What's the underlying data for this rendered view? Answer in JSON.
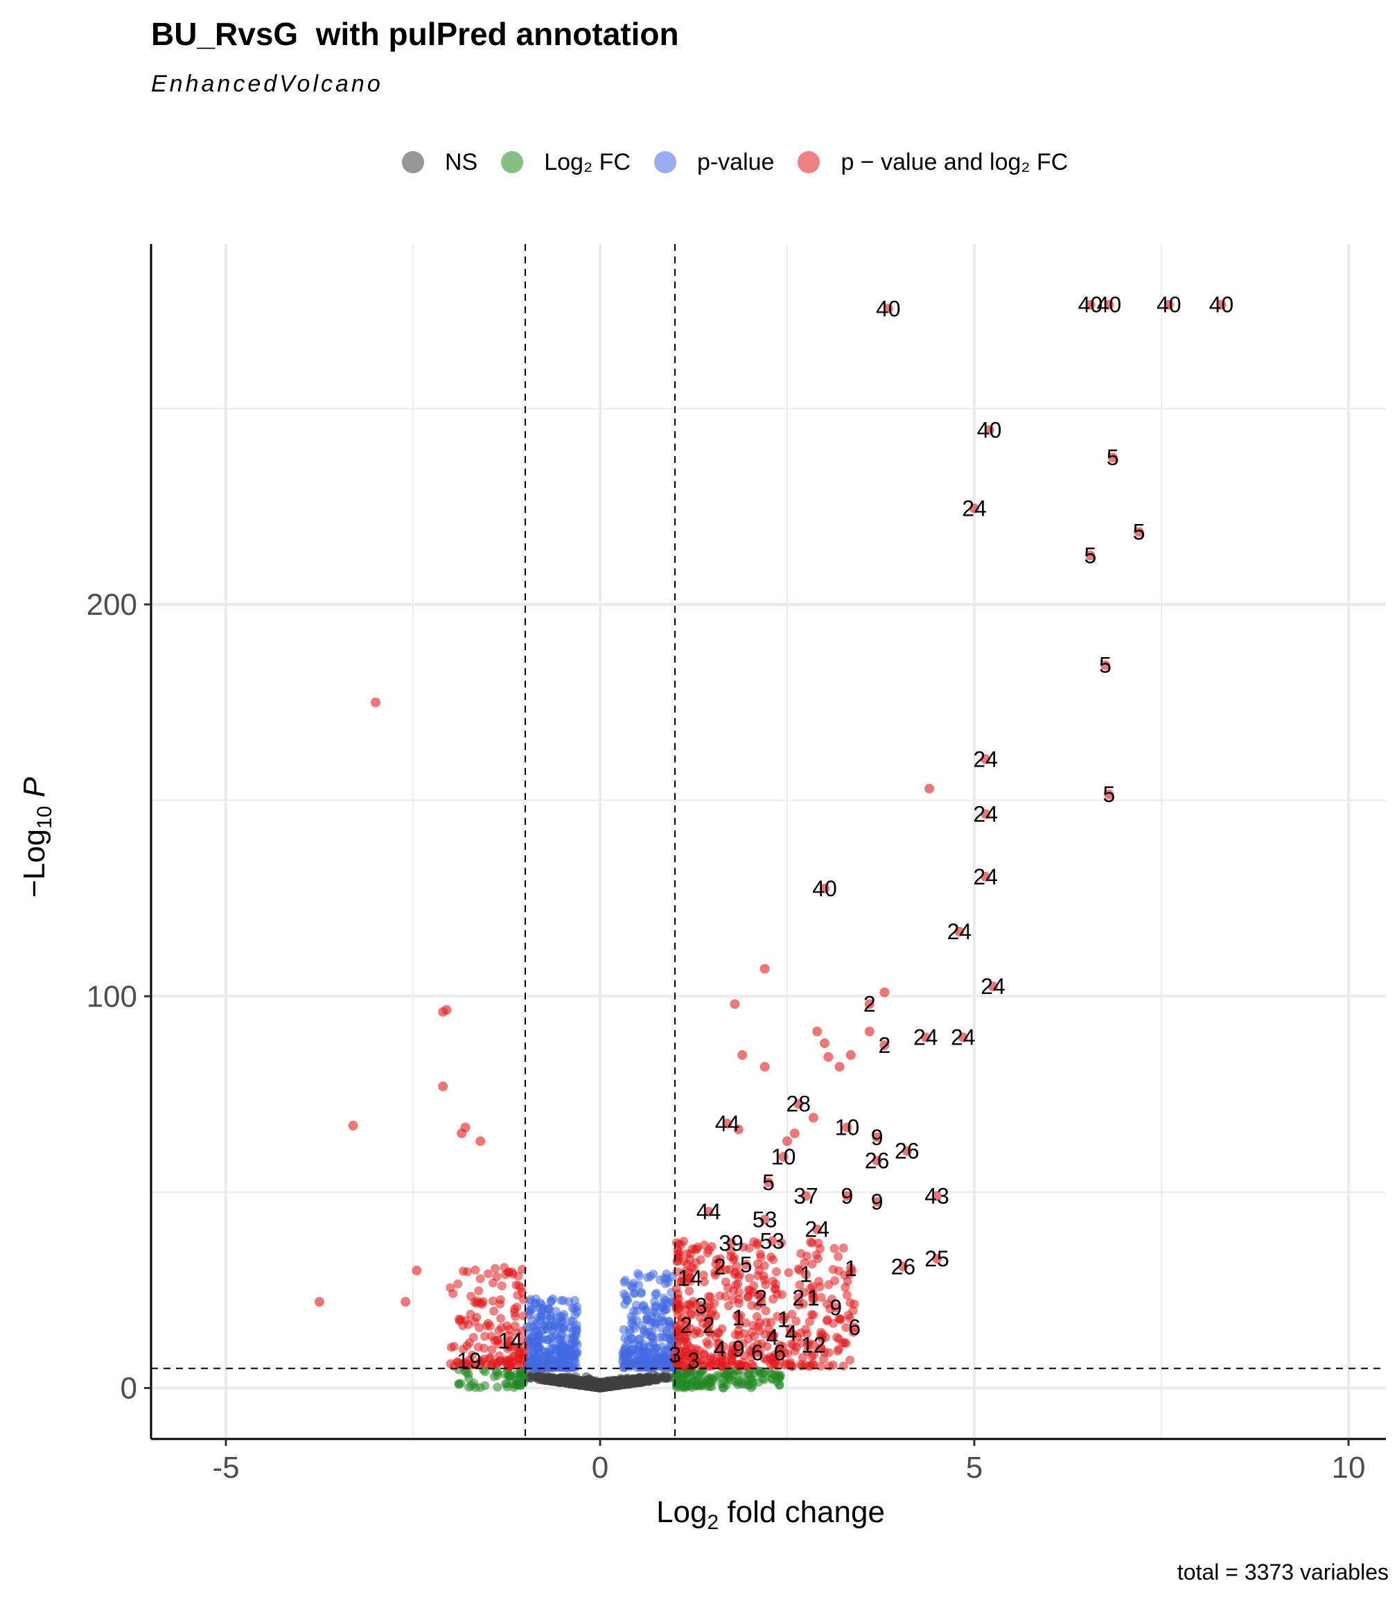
{
  "chart_data": {
    "type": "scatter",
    "title": "BU_RvsG  with pulPred annotation",
    "subtitle": "EnhancedVolcano",
    "caption": "total = 3373 variables",
    "xlabel": {
      "base": "Log",
      "sub": "2",
      "rest": " fold change"
    },
    "ylabel": {
      "minus": "−",
      "base": "Log",
      "sub": "10",
      "rest": " P"
    },
    "xlim": [
      -6,
      10.5
    ],
    "ylim": [
      -13,
      292
    ],
    "x_ticks": [
      -5,
      0,
      5,
      10
    ],
    "x_tick_labels": [
      "-5",
      "0",
      "5",
      "10"
    ],
    "y_ticks": [
      0,
      100,
      200
    ],
    "y_tick_labels": [
      "0",
      "100",
      "200"
    ],
    "y_minor": [
      50,
      150,
      250
    ],
    "x_minor": [
      -2.5,
      2.5,
      7.5
    ],
    "grid": true,
    "cutoffs": {
      "fc": [
        -1,
        1
      ],
      "p": 5
    },
    "legend_position": "top",
    "legend": [
      {
        "key": "NS",
        "label": "NS",
        "color": "#404040"
      },
      {
        "key": "FC",
        "label": "Log₂ FC",
        "color": "#228B22"
      },
      {
        "key": "P",
        "label": "p-value",
        "color": "#4169E1"
      },
      {
        "key": "PFC",
        "label": "p − value and log₂ FC",
        "color": "#E31A1C"
      }
    ],
    "labeled_points": [
      {
        "x": 3.85,
        "y": 275.5,
        "label": "40"
      },
      {
        "x": 6.55,
        "y": 276.5,
        "label": "40"
      },
      {
        "x": 6.8,
        "y": 276.5,
        "label": "40"
      },
      {
        "x": 7.6,
        "y": 276.5,
        "label": "40"
      },
      {
        "x": 8.3,
        "y": 276.5,
        "label": "40"
      },
      {
        "x": 5.2,
        "y": 244.5,
        "label": "40"
      },
      {
        "x": 6.85,
        "y": 237.5,
        "label": "5"
      },
      {
        "x": 5.0,
        "y": 224.5,
        "label": "24"
      },
      {
        "x": 7.2,
        "y": 218.5,
        "label": "5"
      },
      {
        "x": 6.55,
        "y": 212.5,
        "label": "5"
      },
      {
        "x": 6.75,
        "y": 184.5,
        "label": "5"
      },
      {
        "x": 5.15,
        "y": 160.5,
        "label": "24"
      },
      {
        "x": 6.8,
        "y": 151.5,
        "label": "5"
      },
      {
        "x": 5.15,
        "y": 146.5,
        "label": "24"
      },
      {
        "x": 3.0,
        "y": 127.5,
        "label": "40"
      },
      {
        "x": 5.15,
        "y": 130.5,
        "label": "24"
      },
      {
        "x": 4.8,
        "y": 116.5,
        "label": "24"
      },
      {
        "x": 5.25,
        "y": 102.5,
        "label": "24"
      },
      {
        "x": 3.6,
        "y": 98.0,
        "label": "2"
      },
      {
        "x": 3.8,
        "y": 87.5,
        "label": "2"
      },
      {
        "x": 4.35,
        "y": 89.5,
        "label": "24"
      },
      {
        "x": 4.85,
        "y": 89.5,
        "label": "24"
      },
      {
        "x": 2.65,
        "y": 72.5,
        "label": "28"
      },
      {
        "x": 1.7,
        "y": 67.5,
        "label": "44"
      },
      {
        "x": 3.3,
        "y": 66.5,
        "label": "10"
      },
      {
        "x": 3.7,
        "y": 64.0,
        "label": "9"
      },
      {
        "x": 4.1,
        "y": 60.5,
        "label": "26"
      },
      {
        "x": 2.45,
        "y": 59.0,
        "label": "10"
      },
      {
        "x": 3.7,
        "y": 58.0,
        "label": "26"
      },
      {
        "x": 2.25,
        "y": 52.5,
        "label": "5"
      },
      {
        "x": 2.75,
        "y": 49.0,
        "label": "37"
      },
      {
        "x": 3.3,
        "y": 49.0,
        "label": "9"
      },
      {
        "x": 3.7,
        "y": 47.5,
        "label": "9"
      },
      {
        "x": 4.5,
        "y": 49.0,
        "label": "43"
      },
      {
        "x": 1.45,
        "y": 45.0,
        "label": "44"
      },
      {
        "x": 2.2,
        "y": 43.0,
        "label": "53"
      },
      {
        "x": 2.9,
        "y": 40.5,
        "label": "24"
      },
      {
        "x": 1.75,
        "y": 37.0,
        "label": "39"
      },
      {
        "x": 2.3,
        "y": 37.5,
        "label": "53"
      },
      {
        "x": 1.6,
        "y": 31.0,
        "label": "2"
      },
      {
        "x": 1.95,
        "y": 31.5,
        "label": "5"
      },
      {
        "x": 2.75,
        "y": 29.0,
        "label": "1"
      },
      {
        "x": 3.35,
        "y": 30.5,
        "label": "1"
      },
      {
        "x": 4.05,
        "y": 31.0,
        "label": "26"
      },
      {
        "x": 4.5,
        "y": 33.0,
        "label": "25"
      },
      {
        "x": 1.2,
        "y": 28.0,
        "label": "14"
      },
      {
        "x": 2.15,
        "y": 23.0,
        "label": "2"
      },
      {
        "x": 2.65,
        "y": 23.0,
        "label": "2"
      },
      {
        "x": 2.85,
        "y": 23.0,
        "label": "1"
      },
      {
        "x": 3.15,
        "y": 20.5,
        "label": "9"
      },
      {
        "x": 1.35,
        "y": 21.0,
        "label": "3"
      },
      {
        "x": 1.85,
        "y": 18.0,
        "label": "1"
      },
      {
        "x": 2.45,
        "y": 17.5,
        "label": "1"
      },
      {
        "x": 1.15,
        "y": 16.0,
        "label": "2"
      },
      {
        "x": 1.45,
        "y": 16.0,
        "label": "2"
      },
      {
        "x": 3.4,
        "y": 15.5,
        "label": "6"
      },
      {
        "x": 2.3,
        "y": 13.0,
        "label": "4"
      },
      {
        "x": 2.55,
        "y": 14.0,
        "label": "4"
      },
      {
        "x": 2.85,
        "y": 11.0,
        "label": "12"
      },
      {
        "x": -1.2,
        "y": 12.0,
        "label": "14"
      },
      {
        "x": 1.6,
        "y": 10.0,
        "label": "4"
      },
      {
        "x": 1.85,
        "y": 10.0,
        "label": "9"
      },
      {
        "x": 2.1,
        "y": 9.0,
        "label": "6"
      },
      {
        "x": 2.4,
        "y": 9.0,
        "label": "6"
      },
      {
        "x": 1.0,
        "y": 8.5,
        "label": "3"
      },
      {
        "x": 1.25,
        "y": 7.0,
        "label": "3"
      },
      {
        "x": -1.75,
        "y": 7.0,
        "label": "19"
      }
    ],
    "unlabeled_points": [
      {
        "x": -3.0,
        "y": 175.0
      },
      {
        "x": 4.4,
        "y": 153.0
      },
      {
        "x": 2.2,
        "y": 107.0
      },
      {
        "x": 3.8,
        "y": 101.0
      },
      {
        "x": 1.8,
        "y": 98.0
      },
      {
        "x": -2.1,
        "y": 96.0
      },
      {
        "x": -2.05,
        "y": 96.5
      },
      {
        "x": 2.9,
        "y": 91.0
      },
      {
        "x": 3.0,
        "y": 88.0
      },
      {
        "x": 3.6,
        "y": 91.0
      },
      {
        "x": 3.35,
        "y": 85.0
      },
      {
        "x": 1.9,
        "y": 85.0
      },
      {
        "x": 3.05,
        "y": 84.5
      },
      {
        "x": 3.2,
        "y": 82.0
      },
      {
        "x": 2.2,
        "y": 82.0
      },
      {
        "x": -2.1,
        "y": 77.0
      },
      {
        "x": -3.3,
        "y": 67.0
      },
      {
        "x": 2.85,
        "y": 69.0
      },
      {
        "x": 1.85,
        "y": 66.0
      },
      {
        "x": -1.85,
        "y": 65.0
      },
      {
        "x": -1.8,
        "y": 66.5
      },
      {
        "x": -1.6,
        "y": 63.0
      },
      {
        "x": 2.6,
        "y": 65.0
      },
      {
        "x": 2.5,
        "y": 63.0
      },
      {
        "x": -3.75,
        "y": 22.0
      },
      {
        "x": -2.45,
        "y": 30.0
      },
      {
        "x": -2.6,
        "y": 22.0
      }
    ],
    "scatter_clouds": [
      {
        "group": "NS",
        "color": "#404040",
        "count": 1650
      },
      {
        "group": "FC",
        "color": "#228B22",
        "count": 180
      },
      {
        "group": "P",
        "color": "#4169E1",
        "count": 520
      },
      {
        "group": "PFC",
        "color": "#E31A1C",
        "count": 560
      }
    ]
  }
}
